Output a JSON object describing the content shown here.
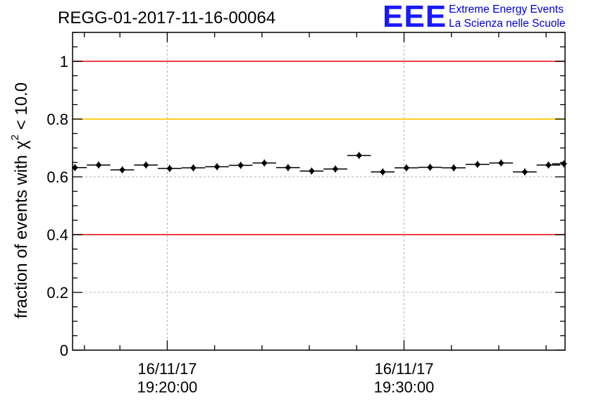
{
  "chart_data": {
    "type": "scatter",
    "title": "REGG-01-2017-11-16-00064",
    "ylabel_main": "fraction of events with",
    "ylabel_symbol": "χ",
    "ylabel_sup": "2",
    "ylabel_tail": " < 10.0",
    "xlabel": "",
    "ylim": [
      0,
      1.1
    ],
    "xlim_minutes": [
      16.0,
      36.8
    ],
    "yticks": [
      {
        "value": 0,
        "label": "0"
      },
      {
        "value": 0.2,
        "label": "0.2"
      },
      {
        "value": 0.4,
        "label": "0.4"
      },
      {
        "value": 0.6,
        "label": "0.6"
      },
      {
        "value": 0.8,
        "label": "0.8"
      },
      {
        "value": 1.0,
        "label": "1"
      }
    ],
    "xticks": [
      {
        "minute": 20,
        "date": "16/11/17",
        "time": "19:20:00"
      },
      {
        "minute": 30,
        "date": "16/11/17",
        "time": "19:30:00"
      }
    ],
    "minor_xtick_minutes": [
      16.5,
      18,
      22,
      24,
      26,
      28,
      32,
      34,
      36
    ],
    "reference_lines": [
      {
        "name": "upper-red-line",
        "value": 1.0,
        "color": "#e8262a"
      },
      {
        "name": "yellow-line",
        "value": 0.8,
        "color": "#ffcc00"
      },
      {
        "name": "lower-red-line",
        "value": 0.4,
        "color": "#e8262a"
      }
    ],
    "point_half_width_minutes": 0.5,
    "points": [
      {
        "x": 16.1,
        "y": 0.632,
        "err": 0.012
      },
      {
        "x": 17.1,
        "y": 0.641,
        "err": 0.012
      },
      {
        "x": 18.1,
        "y": 0.624,
        "err": 0.012
      },
      {
        "x": 19.1,
        "y": 0.641,
        "err": 0.012
      },
      {
        "x": 20.1,
        "y": 0.629,
        "err": 0.012
      },
      {
        "x": 21.1,
        "y": 0.631,
        "err": 0.012
      },
      {
        "x": 22.1,
        "y": 0.635,
        "err": 0.012
      },
      {
        "x": 23.1,
        "y": 0.64,
        "err": 0.012
      },
      {
        "x": 24.1,
        "y": 0.648,
        "err": 0.012
      },
      {
        "x": 25.1,
        "y": 0.632,
        "err": 0.012
      },
      {
        "x": 26.1,
        "y": 0.62,
        "err": 0.012
      },
      {
        "x": 27.1,
        "y": 0.627,
        "err": 0.012
      },
      {
        "x": 28.1,
        "y": 0.674,
        "err": 0.012
      },
      {
        "x": 29.1,
        "y": 0.617,
        "err": 0.012
      },
      {
        "x": 30.1,
        "y": 0.631,
        "err": 0.012
      },
      {
        "x": 31.1,
        "y": 0.633,
        "err": 0.012
      },
      {
        "x": 32.1,
        "y": 0.631,
        "err": 0.012
      },
      {
        "x": 33.1,
        "y": 0.643,
        "err": 0.012
      },
      {
        "x": 34.1,
        "y": 0.648,
        "err": 0.012
      },
      {
        "x": 35.1,
        "y": 0.617,
        "err": 0.012
      },
      {
        "x": 36.1,
        "y": 0.641,
        "err": 0.012
      },
      {
        "x": 36.75,
        "y": 0.645,
        "err": 0.012
      }
    ],
    "grid": true
  },
  "logo": {
    "letters": "EEE",
    "line1": "Extreme Energy Events",
    "line2": "La Scienza nelle Scuole"
  },
  "colors": {
    "logo_blue": "#1a1aff",
    "red": "#e8262a",
    "yellow": "#ffcc00",
    "grid": "#b0b0b0"
  }
}
